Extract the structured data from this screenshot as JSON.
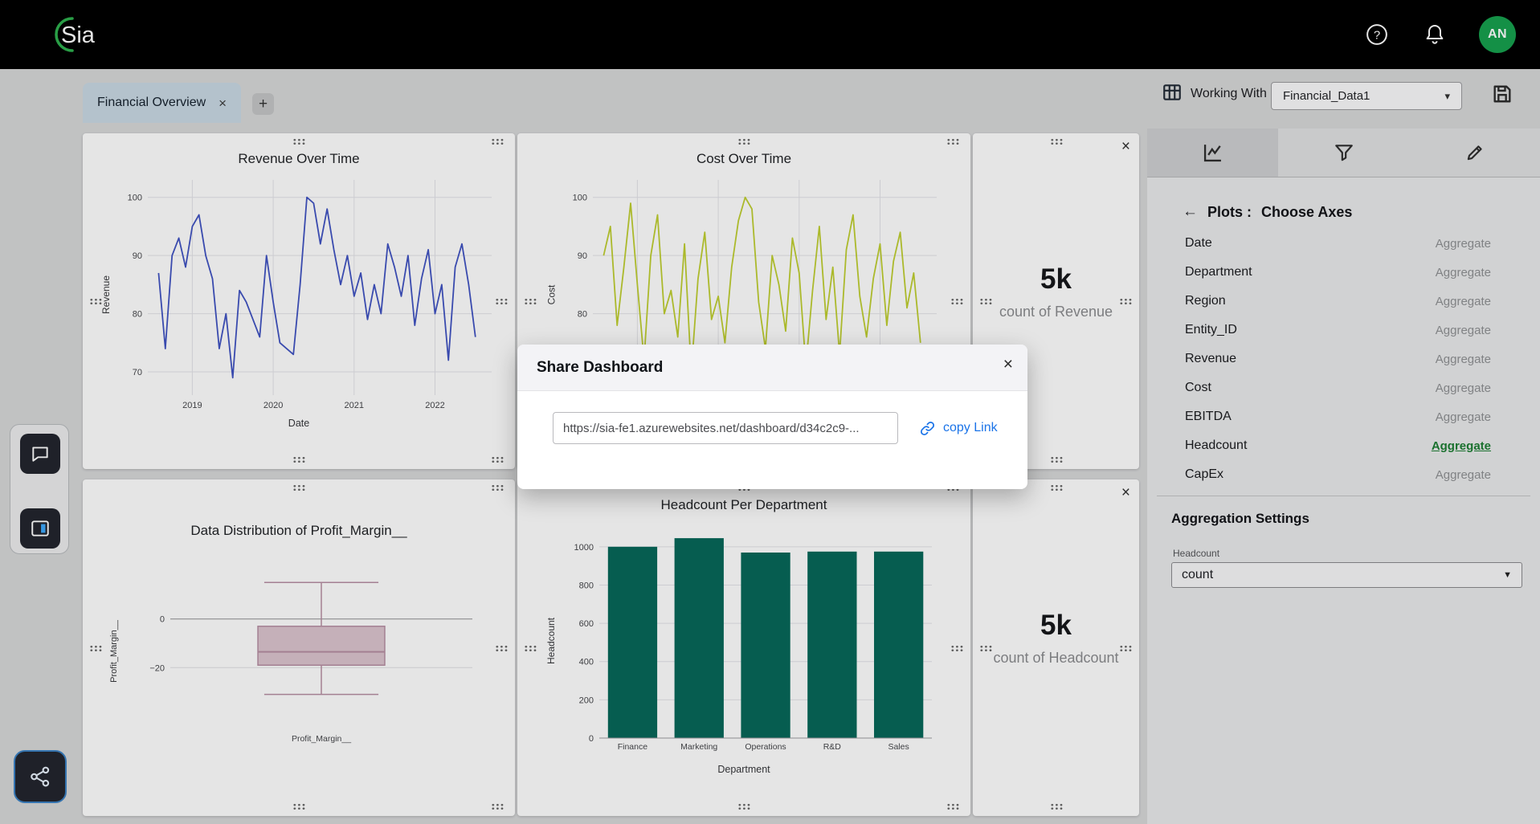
{
  "navbar": {
    "logo_text": "Sia",
    "avatar_initials": "AN"
  },
  "dashboard_tabs": {
    "active": "Financial Overview",
    "close": "×",
    "add": "+"
  },
  "working_with": {
    "label": "Working With",
    "dataset": "Financial_Data1",
    "caret": "▾"
  },
  "panel": {
    "back_arrow": "←",
    "title_primary": "Plots :",
    "title_secondary": "Choose Axes",
    "fields": [
      {
        "name": "Date",
        "aggregate": "Aggregate",
        "active": false
      },
      {
        "name": "Department",
        "aggregate": "Aggregate",
        "active": false
      },
      {
        "name": "Region",
        "aggregate": "Aggregate",
        "active": false
      },
      {
        "name": "Entity_ID",
        "aggregate": "Aggregate",
        "active": false
      },
      {
        "name": "Revenue",
        "aggregate": "Aggregate",
        "active": false
      },
      {
        "name": "Cost",
        "aggregate": "Aggregate",
        "active": false
      },
      {
        "name": "EBITDA",
        "aggregate": "Aggregate",
        "active": false
      },
      {
        "name": "Headcount",
        "aggregate": "Aggregate",
        "active": true
      },
      {
        "name": "CapEx",
        "aggregate": "Aggregate",
        "active": false
      }
    ],
    "aggregation": {
      "title": "Aggregation Settings",
      "field": "Headcount",
      "value": "count",
      "caret": "▼"
    }
  },
  "widgets": {
    "close": "×",
    "revenue_count": {
      "value": "5k",
      "label": "count of Revenue"
    },
    "headcount_count": {
      "value": "5k",
      "label": "count of Headcount"
    }
  },
  "share_modal": {
    "title": "Share Dashboard",
    "close": "×",
    "url": "https://sia-fe1.azurewebsites.net/dashboard/d34c2c9-...",
    "copy_label": "copy Link"
  },
  "chart_data": [
    {
      "id": "revenue_line",
      "type": "line",
      "title": "Revenue Over Time",
      "xlabel": "Date",
      "ylabel": "Revenue",
      "color": "#4053c2",
      "xlim": [
        2018.45,
        2022.7
      ],
      "ylim": [
        66,
        103
      ],
      "y_ticks": [
        70,
        80,
        90,
        100
      ],
      "x_ticks": [
        2019,
        2020,
        2021,
        2022
      ],
      "x_start": 2018.583,
      "x_step": 0.08333,
      "values": [
        87,
        74,
        90,
        93,
        88,
        95,
        97,
        90,
        86,
        74,
        80,
        69,
        84,
        82,
        79,
        76,
        90,
        82,
        75,
        74,
        73,
        85,
        100,
        99,
        92,
        98,
        91,
        85,
        90,
        83,
        87,
        79,
        85,
        80,
        92,
        88,
        83,
        90,
        78,
        86,
        91,
        80,
        85,
        72,
        88,
        92,
        85,
        76
      ]
    },
    {
      "id": "cost_line",
      "type": "line",
      "title": "Cost Over Time",
      "xlabel": "Date",
      "ylabel": "Cost",
      "color": "#bfcf30",
      "xlim": [
        2018.45,
        2022.7
      ],
      "ylim": [
        66,
        103
      ],
      "y_ticks": [
        70,
        80,
        90,
        100
      ],
      "x_ticks": [
        2019,
        2020,
        2021,
        2022
      ],
      "x_start": 2018.583,
      "x_step": 0.08333,
      "values": [
        90,
        95,
        78,
        88,
        99,
        85,
        72,
        90,
        97,
        80,
        84,
        76,
        92,
        70,
        86,
        94,
        79,
        83,
        75,
        88,
        96,
        100,
        98,
        82,
        74,
        90,
        85,
        77,
        93,
        87,
        71,
        84,
        95,
        79,
        88,
        73,
        91,
        97,
        83,
        76,
        86,
        92,
        78,
        89,
        94,
        81,
        87,
        75
      ]
    },
    {
      "id": "profit_box",
      "type": "box",
      "title": "Data Distribution of Profit_Margin__",
      "ylabel": "Profit_Margin__",
      "x_tick": "Profit_Margin__",
      "ylim": [
        -45,
        25
      ],
      "y_ticks": [
        0,
        -20
      ],
      "box": {
        "min": -31,
        "q1": -19,
        "median": -13.5,
        "q3": -3,
        "max": 15
      },
      "fill": "#dcc5cf",
      "stroke": "#b78fa3"
    },
    {
      "id": "headcount_bar",
      "type": "bar",
      "title": "Headcount Per Department",
      "xlabel": "Department",
      "ylabel": "Headcount",
      "categories": [
        "Finance",
        "Marketing",
        "Operations",
        "R&D",
        "Sales"
      ],
      "values": [
        1000,
        1045,
        970,
        975,
        975
      ],
      "ylim": [
        0,
        1100
      ],
      "y_ticks": [
        0,
        200,
        400,
        600,
        800,
        1000
      ],
      "color": "#07685a"
    }
  ]
}
